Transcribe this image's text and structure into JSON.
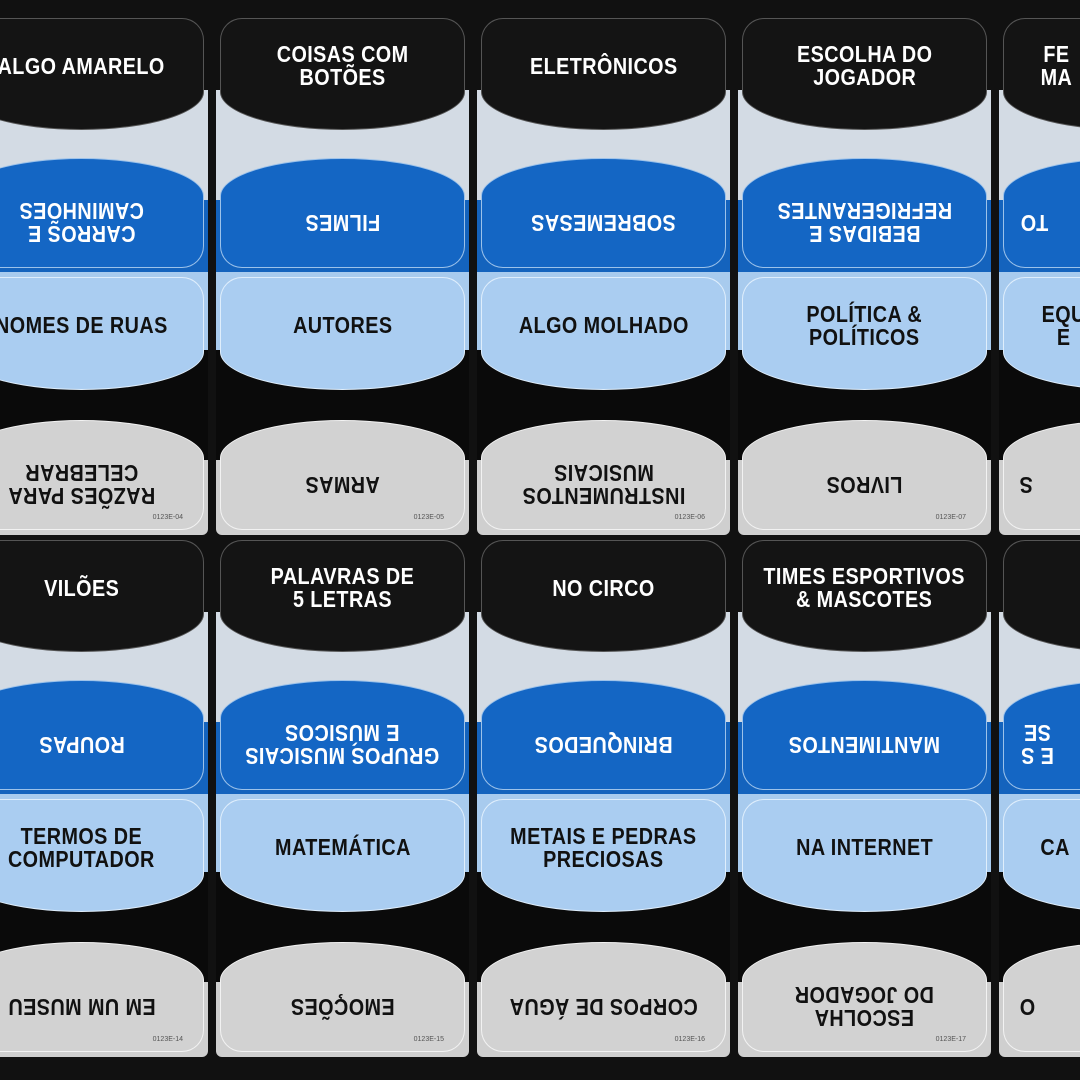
{
  "rows": [
    {
      "cards": [
        {
          "top": [
            "ALGO AMARELO"
          ],
          "blue": [
            "CARROS E",
            "CAMINHÕES"
          ],
          "light": [
            "NOMES DE RUAS"
          ],
          "gray": [
            "RAZÕES PARA",
            "CELEBRAR"
          ],
          "code": "0123E-04"
        },
        {
          "top": [
            "COISAS COM",
            "BOTÕES"
          ],
          "blue": [
            "FILMES"
          ],
          "light": [
            "AUTORES"
          ],
          "gray": [
            "ARMAS"
          ],
          "code": "0123E-05"
        },
        {
          "top": [
            "ELETRÔNICOS"
          ],
          "blue": [
            "SOBREMESAS"
          ],
          "light": [
            "ALGO MOLHADO"
          ],
          "gray": [
            "INSTRUMENTOS",
            "MUSICAIS"
          ],
          "code": "0123E-06"
        },
        {
          "top": [
            "ESCOLHA DO",
            "JOGADOR"
          ],
          "blue": [
            "BEBIDAS E",
            "REFRIGERANTES"
          ],
          "light": [
            "POLÍTICA &",
            "POLÍTICOS"
          ],
          "gray": [
            "LIVROS"
          ],
          "code": "0123E-07"
        },
        {
          "top": [
            "FE",
            "MA"
          ],
          "blue": [
            "TO"
          ],
          "light": [
            "EQU",
            "E"
          ],
          "gray": [
            "S"
          ],
          "code": ""
        }
      ]
    },
    {
      "cards": [
        {
          "top": [
            "VILÕES"
          ],
          "blue": [
            "ROUPAS"
          ],
          "light": [
            "TERMOS DE",
            "COMPUTADOR"
          ],
          "gray": [
            "EM UM MUSEU"
          ],
          "code": "0123E-14"
        },
        {
          "top": [
            "PALAVRAS DE",
            "5 LETRAS"
          ],
          "blue": [
            "GRUPOS MUSICAIS",
            "E MÚSICOS"
          ],
          "light": [
            "MATEMÁTICA"
          ],
          "gray": [
            "EMOÇÕES"
          ],
          "code": "0123E-15"
        },
        {
          "top": [
            "NO CIRCO"
          ],
          "blue": [
            "BRINQUEDOS"
          ],
          "light": [
            "METAIS E PEDRAS",
            "PRECIOSAS"
          ],
          "gray": [
            "CORPOS DE ÁGUA"
          ],
          "code": "0123E-16"
        },
        {
          "top": [
            "TIMES ESPORTIVOS",
            "& MASCOTES"
          ],
          "blue": [
            "MANTIMENTOS"
          ],
          "light": [
            "NA INTERNET"
          ],
          "gray": [
            "ESCOLHA",
            "DO JOGADOR"
          ],
          "code": "0123E-17"
        },
        {
          "top": [
            ""
          ],
          "blue": [
            "E S",
            "SE"
          ],
          "light": [
            "CA"
          ],
          "gray": [
            "O"
          ],
          "code": ""
        }
      ]
    }
  ],
  "colors": {
    "black": "#141414",
    "blue": "#1466c4",
    "light_blue": "#aacdf1",
    "gray": "#d2d2d2"
  }
}
